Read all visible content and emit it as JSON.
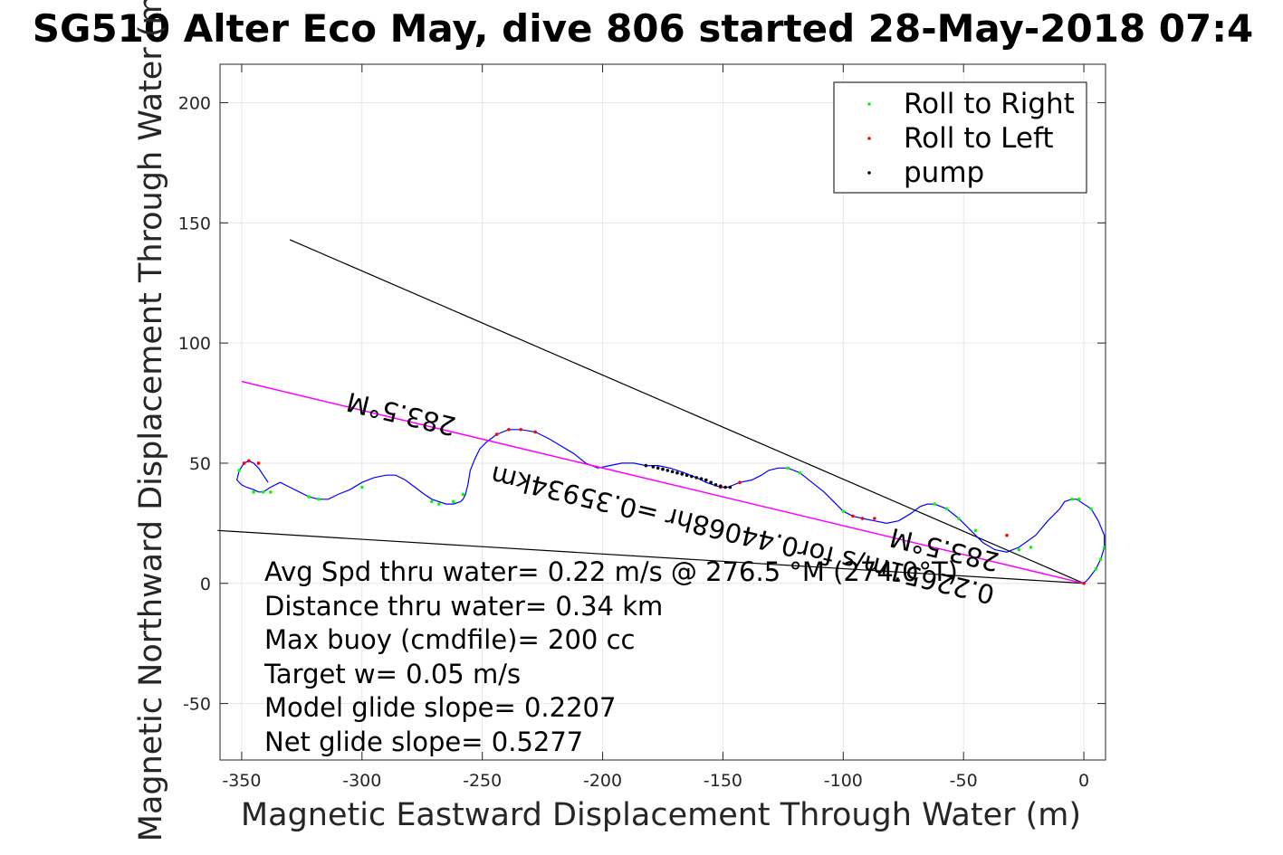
{
  "chart_data": {
    "type": "line",
    "title": "SG510 Alter Eco May, dive 806 started 28-May-2018 07:4",
    "xlabel": "Magnetic Eastward Displacement Through Water (m)",
    "ylabel": "Magnetic Northward Displacement Through Water (m)",
    "xlim": [
      -359,
      9
    ],
    "ylim": [
      -73.5,
      216
    ],
    "xticks": [
      -350,
      -300,
      -250,
      -200,
      -150,
      -100,
      -50,
      0
    ],
    "yticks": [
      -50,
      0,
      50,
      100,
      150,
      200
    ],
    "grid": true,
    "legend": {
      "placement": "top-right",
      "entries": [
        {
          "label": "Roll to Right",
          "color": "#00ff00"
        },
        {
          "label": "Roll to Left",
          "color": "#ff0000"
        },
        {
          "label": "pump",
          "color": "#000000"
        }
      ]
    },
    "series": [
      {
        "color": "#0000ff",
        "x": [
          0,
          2,
          5,
          7,
          8.5,
          8.5,
          6,
          3,
          -3,
          -5,
          -8,
          -10,
          -15,
          -20,
          -27,
          -32,
          -37,
          -42,
          -47,
          -52,
          -57,
          -62,
          -65,
          -68,
          -72,
          -77,
          -82,
          -87,
          -92,
          -96,
          -100,
          -104,
          -108,
          -113,
          -118,
          -123,
          -127,
          -131,
          -134,
          -138,
          -143,
          -148,
          -151,
          -157,
          -161,
          -166,
          -172,
          -177,
          -182,
          -187,
          -192,
          -197,
          -202,
          -207,
          -212,
          -217,
          -222,
          -228,
          -234,
          -239,
          -244,
          -248,
          -251,
          -253,
          -255,
          -256,
          -257,
          -258,
          -259,
          -262,
          -265,
          -268,
          -271,
          -274,
          -278,
          -282,
          -286,
          -290,
          -295,
          -300,
          -305,
          -310,
          -314,
          -318,
          -322,
          -326,
          -330,
          -334,
          -338,
          -341,
          -343,
          -345,
          -348,
          -350,
          -352,
          -351,
          -349,
          -347,
          -345,
          -343,
          -341,
          -339
        ],
        "y": [
          0,
          2,
          6,
          10,
          15,
          20,
          26,
          31,
          35,
          35,
          34,
          31,
          26,
          20,
          15,
          13,
          14,
          17,
          22,
          27,
          31,
          33,
          33,
          32,
          29,
          26,
          25,
          26,
          27,
          28,
          30,
          34,
          38,
          42,
          46,
          48,
          48,
          47,
          45,
          43,
          42,
          40,
          40,
          42,
          44,
          46,
          48,
          49,
          49,
          50,
          50,
          49,
          48,
          50,
          54,
          57,
          60,
          63,
          64,
          64,
          62,
          59,
          56,
          52,
          47,
          41,
          37,
          35,
          34,
          33,
          33,
          34,
          35,
          37,
          40,
          43,
          45,
          45,
          44,
          42,
          39,
          37,
          35,
          35,
          36,
          38,
          40,
          42,
          40,
          38,
          38,
          39,
          40,
          41,
          43,
          47,
          50,
          51,
          50,
          48,
          45,
          42
        ]
      },
      {
        "color": "#ff00ff",
        "x": [
          0,
          -350
        ],
        "y": [
          0,
          84
        ]
      }
    ],
    "points": {
      "roll_right": {
        "x": [
          8.5,
          7,
          5,
          3,
          -2,
          -5,
          -22,
          -27,
          -45,
          -52,
          -57,
          -62,
          -100,
          -118,
          -123,
          -258,
          -262,
          -268,
          -271,
          -300,
          -318,
          -322,
          -338,
          -341,
          -345,
          -351
        ],
        "y": [
          15,
          10,
          6,
          31,
          35,
          35,
          15,
          14,
          22,
          27,
          31,
          33,
          30,
          46,
          48,
          37,
          34,
          33,
          34,
          40,
          35,
          36,
          38,
          38,
          38,
          47
        ]
      },
      "roll_left": {
        "x": [
          0,
          -32,
          -87,
          -92,
          -96,
          -143,
          -151,
          -228,
          -234,
          -239,
          -244,
          -343,
          -347,
          -349
        ],
        "y": [
          0,
          20,
          27,
          27,
          28,
          42,
          40,
          63,
          64,
          64,
          62,
          50,
          51,
          50
        ]
      },
      "pump": {
        "x": [
          -182,
          -179,
          -177,
          -175,
          -173,
          -171,
          -169,
          -167,
          -165,
          -163,
          -161,
          -159,
          -157,
          -155,
          -153,
          -151,
          -149,
          -147
        ],
        "y": [
          49,
          48.5,
          48,
          47.5,
          47,
          46.5,
          46,
          45.5,
          45,
          44.5,
          44,
          43.5,
          43,
          42,
          41,
          40.5,
          40,
          40
        ]
      }
    },
    "reference_lines": [
      {
        "x": [
          0,
          -330
        ],
        "y": [
          0,
          143
        ],
        "color": "#000000"
      },
      {
        "x": [
          0,
          -360
        ],
        "y": [
          0,
          22
        ],
        "color": "#000000"
      }
    ],
    "annotations": [
      "Avg Spd thru water=  0.22 m/s @ 276.5 °M (274.0°T)",
      "Distance thru water=  0.34 km",
      "Max buoy (cmdfile)= 200 cc",
      "Target w= 0.05 m/s",
      "Model glide slope= 0.2207",
      "Net glide slope= 0.5277"
    ],
    "rotated_labels": [
      "283.5°M",
      "0.22651m/s for0.44068hr =0.35934km",
      "283.5°M"
    ]
  }
}
